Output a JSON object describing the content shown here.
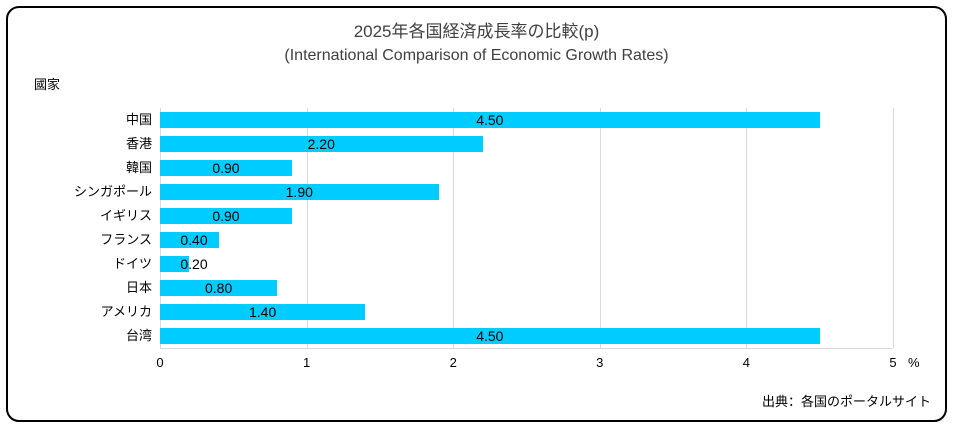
{
  "title": "2025年各国経済成長率の比較(p)",
  "subtitle": "(International Comparison of Economic Growth Rates)",
  "source": "出典：各国のポータルサイト",
  "chart_data": {
    "type": "bar",
    "orientation": "horizontal",
    "title": "2025年各国経済成長率の比較(p)",
    "subtitle": "(International Comparison of Economic Growth Rates)",
    "ylabel": "國家",
    "xlabel": "%",
    "categories": [
      "中国",
      "香港",
      "韓国",
      "シンガポール",
      "イギリス",
      "フランス",
      "ドイツ",
      "日本",
      "アメリカ",
      "台湾"
    ],
    "values": [
      4.5,
      2.2,
      0.9,
      1.9,
      0.9,
      0.4,
      0.2,
      0.8,
      1.4,
      4.5
    ],
    "value_labels": [
      "4.50",
      "2.20",
      "0.90",
      "1.90",
      "0.90",
      "0.40",
      "0.20",
      "0.80",
      "1.40",
      "4.50"
    ],
    "xlim": [
      0,
      5
    ],
    "xticks": [
      0,
      1,
      2,
      3,
      4,
      5
    ],
    "grid": true,
    "legend": "none",
    "bar_color": "#00CCFF",
    "gridline_color": "#D9D9D9",
    "axis_line_color": "#D9D9D9",
    "title_color": "#404040",
    "text_color": "#000000"
  }
}
